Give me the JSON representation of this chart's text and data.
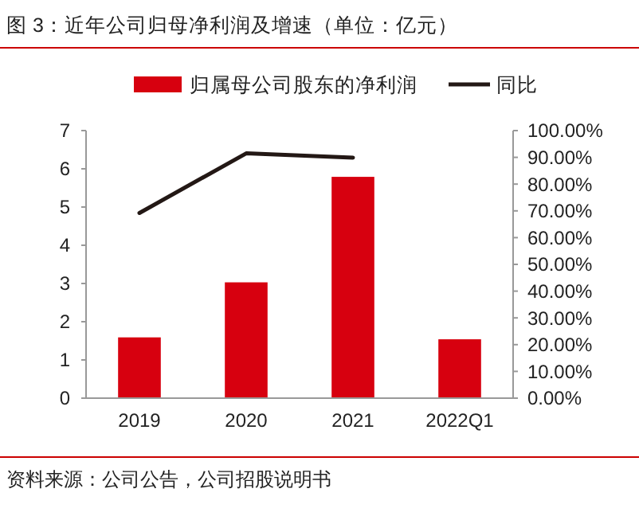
{
  "chart_data": {
    "type": "bar",
    "title": "图 3：近年公司归母净利润及增速（单位：亿元）",
    "categories": [
      "2019",
      "2020",
      "2021",
      "2022Q1"
    ],
    "series": [
      {
        "name": "归属母公司股东的净利润",
        "color": "#d7000f",
        "values": [
          1.59,
          3.03,
          5.79,
          1.54
        ]
      },
      {
        "name": "同比",
        "type": "line",
        "axis": "y2",
        "color": "#231815",
        "values": [
          69.2,
          91.5,
          89.9,
          null
        ]
      }
    ],
    "ylim": [
      0,
      7
    ],
    "yticks": [
      0,
      1,
      2,
      3,
      4,
      5,
      6,
      7
    ],
    "y2lim": [
      0,
      100
    ],
    "y2ticks": [
      {
        "value": 0,
        "label": "0.00%"
      },
      {
        "value": 10,
        "label": "10.00%"
      },
      {
        "value": 20,
        "label": "20.00%"
      },
      {
        "value": 30,
        "label": "30.00%"
      },
      {
        "value": 40,
        "label": "40.00%"
      },
      {
        "value": 50,
        "label": "50.00%"
      },
      {
        "value": 60,
        "label": "60.00%"
      },
      {
        "value": 70,
        "label": "70.00%"
      },
      {
        "value": 80,
        "label": "80.00%"
      },
      {
        "value": 90,
        "label": "90.00%"
      },
      {
        "value": 100,
        "label": "100.00%"
      }
    ],
    "legend": "top",
    "grid": false,
    "annotations": [
      "资料来源：公司公告，公司招股说明书"
    ]
  }
}
